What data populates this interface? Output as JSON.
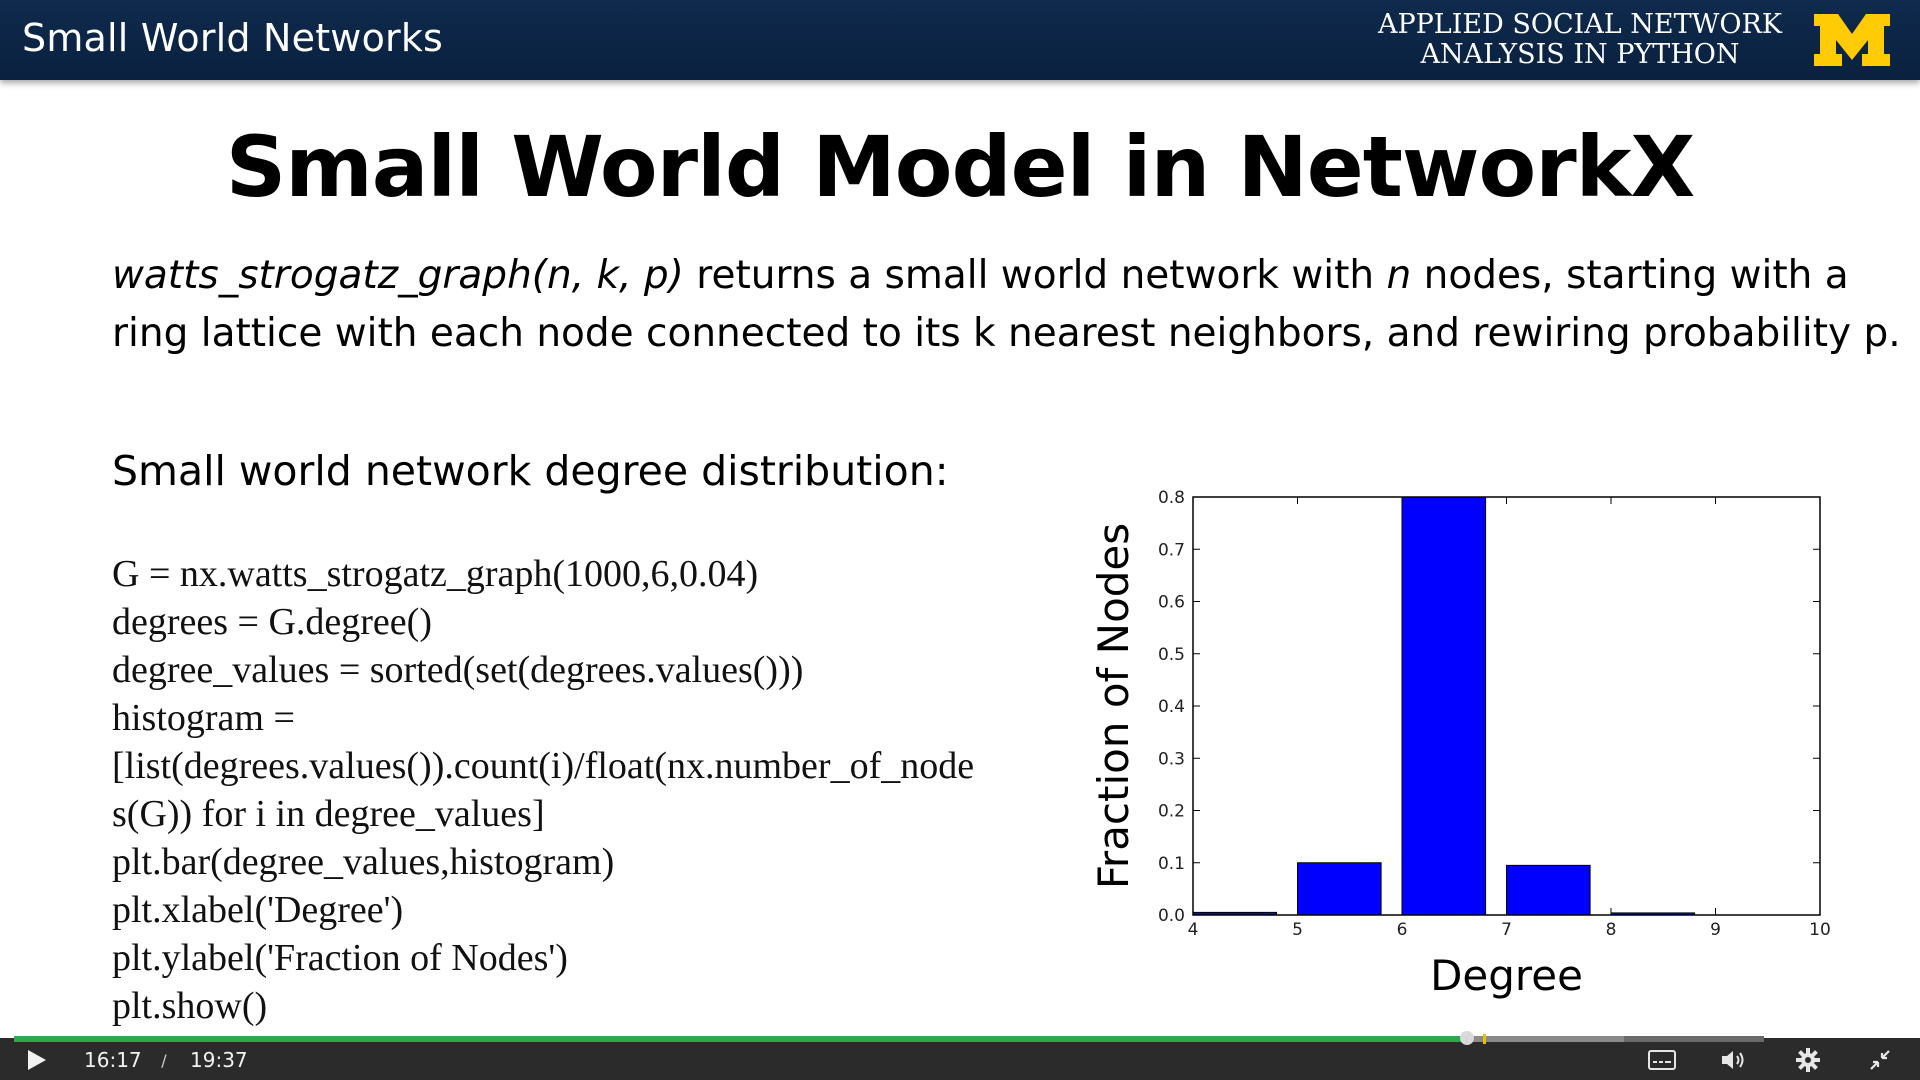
{
  "header": {
    "title": "Small World Networks",
    "course_line1": "APPLIED SOCIAL NETWORK",
    "course_line2": "ANALYSIS IN PYTHON",
    "brand_color": "#ffcb05",
    "logo_icon": "block-m-icon"
  },
  "slide": {
    "title": "Small World Model in NetworkX",
    "desc": {
      "fn": "watts_strogatz_graph(n, k, p)",
      "part1": " returns a small world network with ",
      "n": "n",
      "part2": " nodes, starting with a ring lattice with each node connected to its k nearest neighbors, and rewiring probability p."
    },
    "subhead": "Small world network degree distribution:",
    "code": [
      "G = nx.watts_strogatz_graph(1000,6,0.04)",
      "degrees = G.degree()",
      "degree_values = sorted(set(degrees.values()))",
      "histogram =",
      "[list(degrees.values()).count(i)/float(nx.number_of_node",
      "s(G)) for i in degree_values]",
      "plt.bar(degree_values,histogram)",
      "plt.xlabel('Degree')",
      "plt.ylabel('Fraction of Nodes')",
      "plt.show()"
    ]
  },
  "chart_data": {
    "type": "bar",
    "x": [
      4,
      5,
      6,
      7,
      8
    ],
    "values": [
      0.005,
      0.1,
      0.8,
      0.095,
      0.004
    ],
    "xlabel": "Degree",
    "ylabel": "Fraction of Nodes",
    "xlim": [
      4,
      10
    ],
    "ylim": [
      0,
      0.8
    ],
    "xticks": [
      "4",
      "5",
      "6",
      "7",
      "8",
      "9",
      "10"
    ],
    "yticks": [
      "0.0",
      "0.1",
      "0.2",
      "0.3",
      "0.4",
      "0.5",
      "0.6",
      "0.7",
      "0.8"
    ],
    "bar_color": "#0000ff",
    "grid": false
  },
  "player": {
    "current_time": "16:17",
    "separator": "/",
    "duration": "19:37",
    "played_fraction": 0.83,
    "buffered_fraction": 0.92,
    "icons": [
      "play-icon",
      "captions-icon",
      "volume-icon",
      "settings-icon",
      "exit-fullscreen-icon"
    ]
  }
}
